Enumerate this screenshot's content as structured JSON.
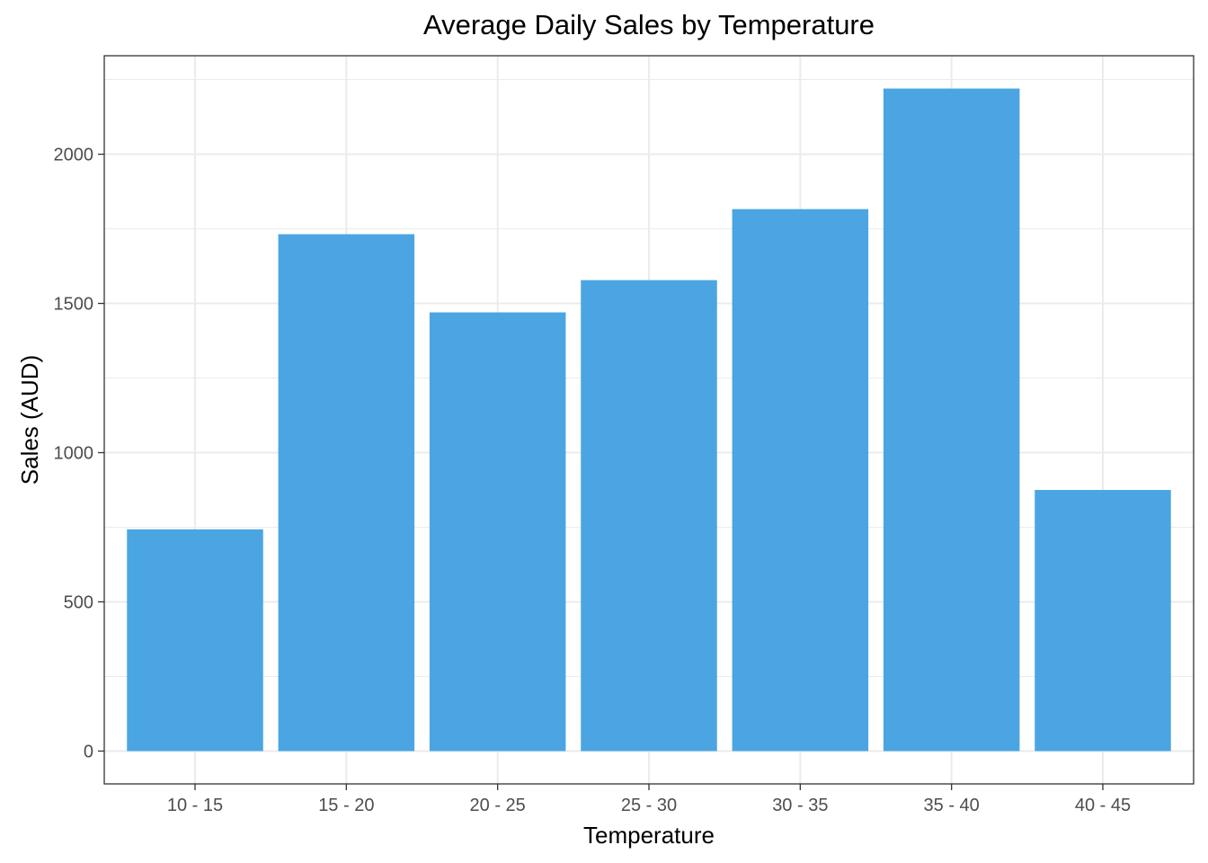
{
  "chart_data": {
    "type": "bar",
    "title": "Average Daily Sales by Temperature",
    "xlabel": "Temperature",
    "ylabel": "Sales (AUD)",
    "categories": [
      "10 - 15",
      "15 - 20",
      "20 - 25",
      "25 - 30",
      "30 - 35",
      "35 - 40",
      "40 - 45"
    ],
    "values": [
      743,
      1732,
      1470,
      1578,
      1816,
      2220,
      875
    ],
    "ylim": [
      -110,
      2330
    ],
    "yticks": [
      0,
      500,
      1000,
      1500,
      2000
    ],
    "ytick_labels": [
      "0",
      "500",
      "1000",
      "1500",
      "2000"
    ],
    "grid": true,
    "bar_color": "#4AA5E2",
    "panel_border_color": "#333333",
    "grid_color": "#EBEBEB"
  }
}
